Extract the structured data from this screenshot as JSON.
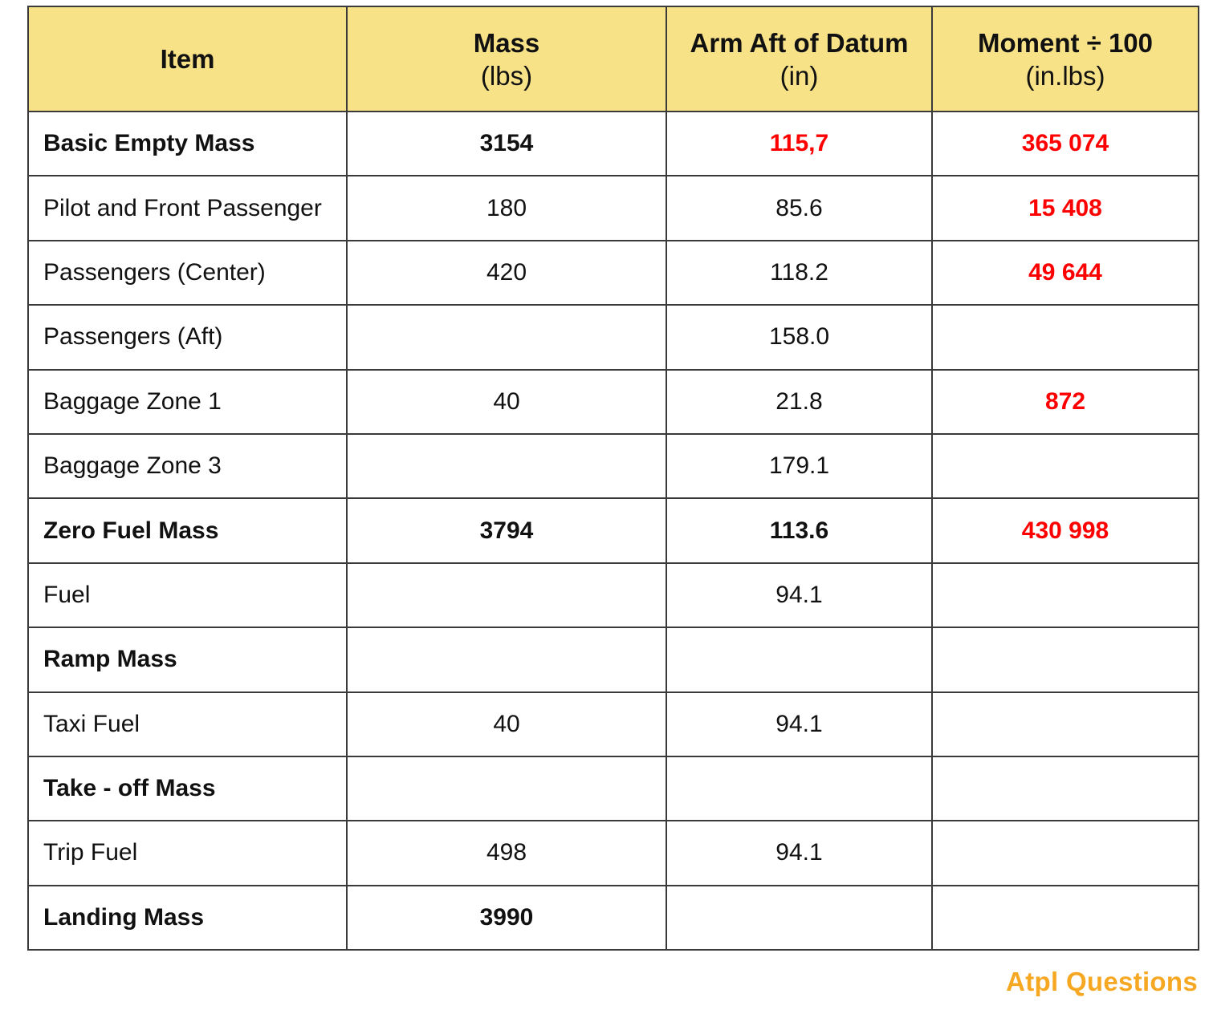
{
  "headers": [
    {
      "label": "Item",
      "unit": ""
    },
    {
      "label": "Mass",
      "unit": "(lbs)"
    },
    {
      "label": "Arm Aft of Datum",
      "unit": "(in)"
    },
    {
      "label": "Moment ÷ 100",
      "unit": "(in.lbs)"
    }
  ],
  "rows": [
    {
      "item": "Basic Empty Mass",
      "mass": "3154",
      "arm": "115,7",
      "moment": "365 074",
      "bold": true,
      "arm_highlight": true,
      "moment_highlight": true
    },
    {
      "item": "Pilot and Front Passenger",
      "mass": "180",
      "arm": "85.6",
      "moment": "15 408",
      "bold": false,
      "arm_highlight": false,
      "moment_highlight": true
    },
    {
      "item": "Passengers (Center)",
      "mass": "420",
      "arm": "118.2",
      "moment": "49 644",
      "bold": false,
      "arm_highlight": false,
      "moment_highlight": true
    },
    {
      "item": "Passengers (Aft)",
      "mass": "",
      "arm": "158.0",
      "moment": "",
      "bold": false,
      "arm_highlight": false,
      "moment_highlight": false
    },
    {
      "item": "Baggage Zone 1",
      "mass": "40",
      "arm": "21.8",
      "moment": "872",
      "bold": false,
      "arm_highlight": false,
      "moment_highlight": true
    },
    {
      "item": "Baggage Zone 3",
      "mass": "",
      "arm": "179.1",
      "moment": "",
      "bold": false,
      "arm_highlight": false,
      "moment_highlight": false
    },
    {
      "item": "Zero Fuel Mass",
      "mass": "3794",
      "arm": "113.6",
      "moment": "430 998",
      "bold": true,
      "arm_highlight": false,
      "moment_highlight": true
    },
    {
      "item": "Fuel",
      "mass": "",
      "arm": "94.1",
      "moment": "",
      "bold": false,
      "arm_highlight": false,
      "moment_highlight": false
    },
    {
      "item": "Ramp Mass",
      "mass": "",
      "arm": "",
      "moment": "",
      "bold": true,
      "arm_highlight": false,
      "moment_highlight": false
    },
    {
      "item": "Taxi Fuel",
      "mass": "40",
      "arm": "94.1",
      "moment": "",
      "bold": false,
      "arm_highlight": false,
      "moment_highlight": false
    },
    {
      "item": "Take - off Mass",
      "mass": "",
      "arm": "",
      "moment": "",
      "bold": true,
      "arm_highlight": false,
      "moment_highlight": false
    },
    {
      "item": "Trip Fuel",
      "mass": "498",
      "arm": "94.1",
      "moment": "",
      "bold": false,
      "arm_highlight": false,
      "moment_highlight": false
    },
    {
      "item": "Landing Mass",
      "mass": "3990",
      "arm": "",
      "moment": "",
      "bold": true,
      "arm_highlight": false,
      "moment_highlight": false
    }
  ],
  "brand": "Atpl Questions",
  "colors": {
    "header_bg": "#f8e287",
    "highlight": "#ff0000",
    "brand": "#f6a823",
    "border": "#3a3a3a"
  }
}
